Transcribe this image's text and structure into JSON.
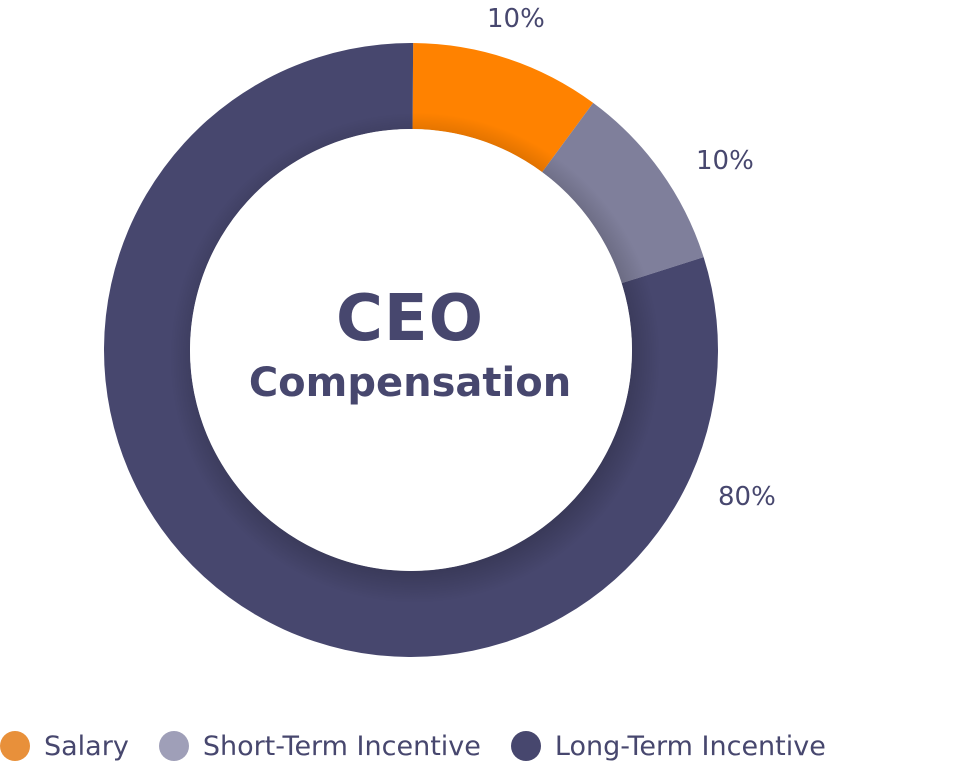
{
  "chart_data": {
    "type": "pie",
    "donut": true,
    "title": "CEO",
    "subtitle": "Compensation",
    "slices": [
      {
        "name": "Salary",
        "value": 10,
        "label": "10%",
        "color": "#ff8200"
      },
      {
        "name": "Short-Term Incentive",
        "value": 10,
        "label": "10%",
        "color": "#7f7f9b"
      },
      {
        "name": "Long-Term Incentive",
        "value": 80,
        "label": "80%",
        "color": "#47476e"
      }
    ],
    "legend": {
      "placement": "bottom",
      "items": [
        {
          "label": "Salary",
          "color": "#e8903a"
        },
        {
          "label": "Short-Term Incentive",
          "color": "#9f9fb8"
        },
        {
          "label": "Long-Term Incentive",
          "color": "#47476e"
        }
      ]
    }
  }
}
